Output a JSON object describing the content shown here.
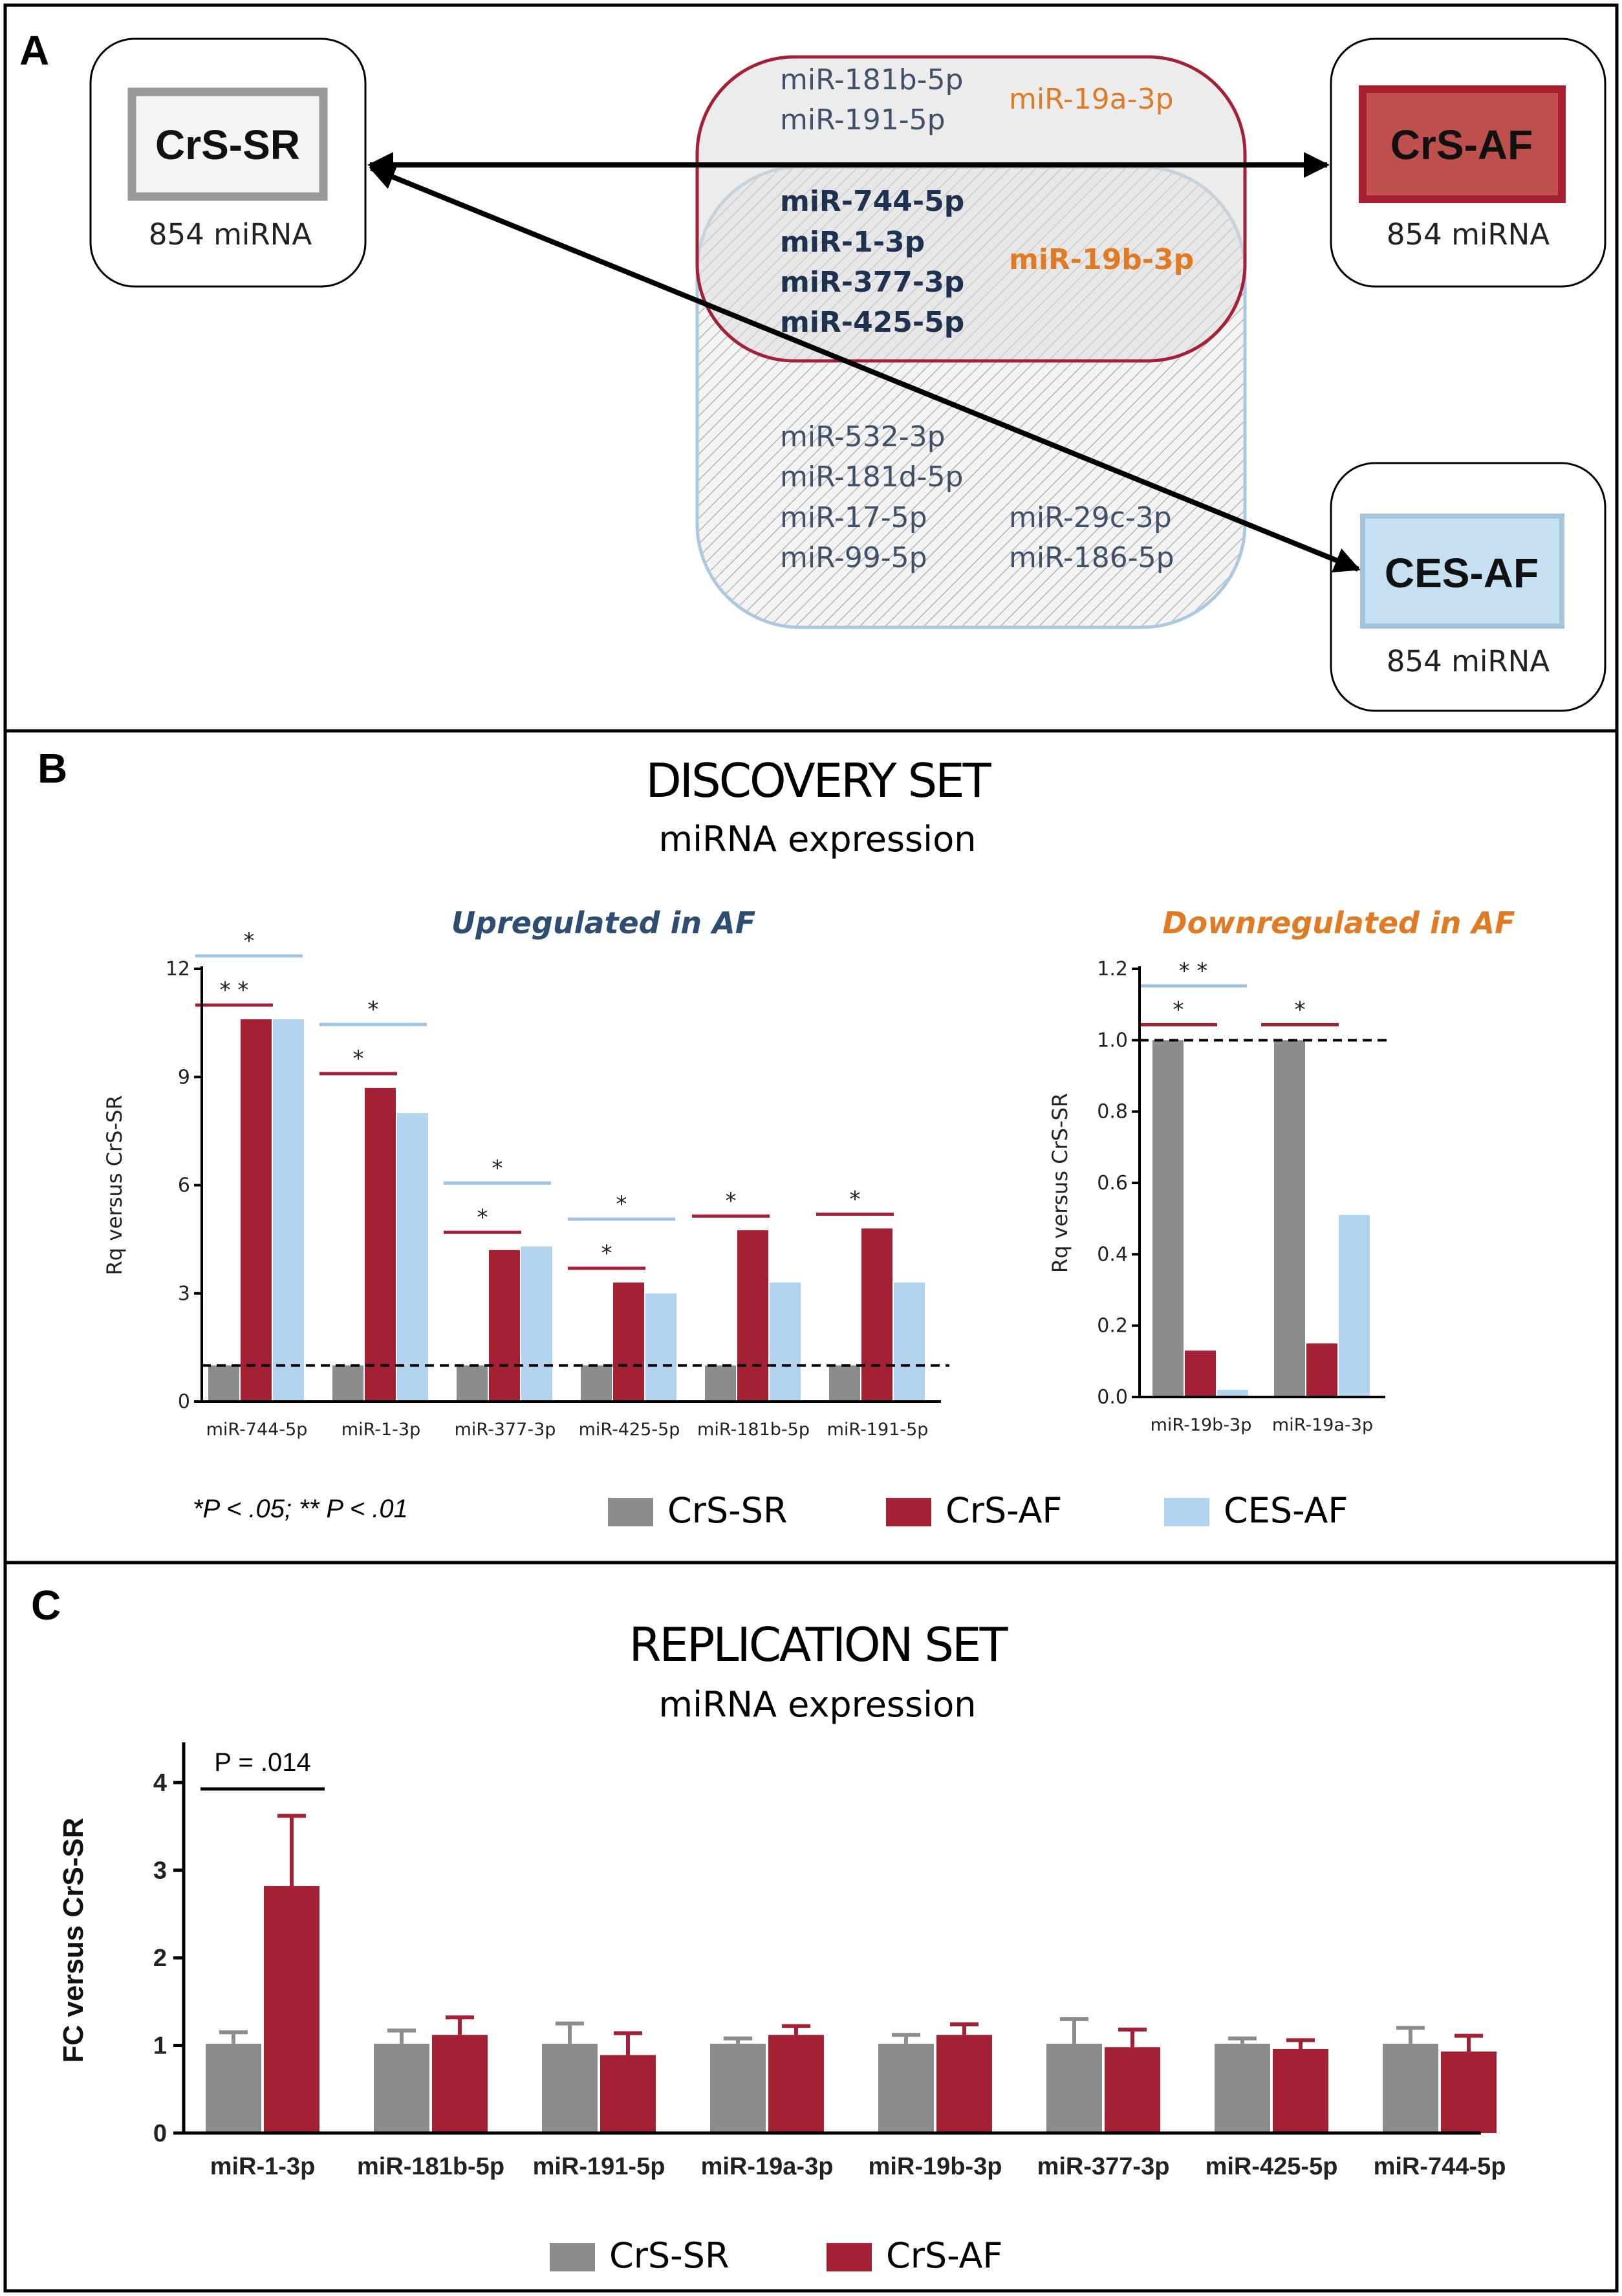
{
  "panel_a": {
    "label": "A",
    "boxes": [
      {
        "name": "CrS-SR",
        "count": "854 miRNA",
        "fill": "#f4f4f4",
        "border": "#999999"
      },
      {
        "name": "CrS-AF",
        "count": "854 miRNA",
        "fill": "#c0504d",
        "border": "#a8202f"
      },
      {
        "name": "CES-AF",
        "count": "854 miRNA",
        "fill": "#c5dff3",
        "border": "#a6c3dc"
      }
    ],
    "red_only_left": [
      "miR-181b-5p",
      "miR-191-5p"
    ],
    "red_only_right": "miR-19a-3p",
    "overlap_left": [
      "miR-744-5p",
      "miR-1-3p",
      "miR-377-3p",
      "miR-425-5p"
    ],
    "overlap_right": "miR-19b-3p",
    "blue_only_left": [
      "miR-532-3p",
      "miR-181d-5p",
      "miR-17-5p",
      "miR-99-5p"
    ],
    "blue_only_right": [
      "miR-29c-3p",
      "miR-186-5p"
    ],
    "colors": {
      "dark_text": "#3f5168",
      "orange": "#e07b24",
      "bold_text": "#1f3150"
    }
  },
  "panel_b": {
    "label": "B",
    "title": "DISCOVERY SET",
    "subtitle": "miRNA expression",
    "significance_note": "*P < .05; ** P < .01"
  },
  "panel_c": {
    "label": "C",
    "title": "REPLICATION SET",
    "subtitle": "miRNA expression",
    "p_label": "P = .014"
  },
  "legend_b": [
    {
      "label": "CrS-SR",
      "color": "#8c8c8c"
    },
    {
      "label": "CrS-AF",
      "color": "#a32035"
    },
    {
      "label": "CES-AF",
      "color": "#b3d4ee"
    }
  ],
  "legend_c": [
    {
      "label": "CrS-SR",
      "color": "#8c8c8c"
    },
    {
      "label": "CrS-AF",
      "color": "#a32035"
    }
  ],
  "chart_data": [
    {
      "id": "up",
      "type": "bar",
      "title": "Upregulated in AF",
      "title_color": "#2e4d72",
      "ylabel": "Rq versus CrS-SR",
      "ylim": [
        0,
        12
      ],
      "yticks": [
        0,
        3,
        6,
        9,
        12
      ],
      "reference_line": 1,
      "categories": [
        "miR-744-5p",
        "miR-1-3p",
        "miR-377-3p",
        "miR-425-5p",
        "miR-181b-5p",
        "miR-191-5p"
      ],
      "series": [
        {
          "name": "CrS-SR",
          "color": "#8c8c8c",
          "values": [
            1,
            1,
            1,
            1,
            1,
            1
          ]
        },
        {
          "name": "CrS-AF",
          "color": "#a32035",
          "values": [
            10.6,
            8.7,
            4.2,
            3.3,
            4.75,
            4.8
          ]
        },
        {
          "name": "CES-AF",
          "color": "#b3d4ee",
          "values": [
            10.6,
            8.0,
            4.3,
            3.0,
            3.3,
            3.3
          ]
        }
      ],
      "significance": [
        {
          "group": 0,
          "compare": "CrS-AF",
          "label": "* *"
        },
        {
          "group": 0,
          "compare": "CES-AF",
          "label": "*"
        },
        {
          "group": 1,
          "compare": "CrS-AF",
          "label": "*"
        },
        {
          "group": 1,
          "compare": "CES-AF",
          "label": "*"
        },
        {
          "group": 2,
          "compare": "CrS-AF",
          "label": "*"
        },
        {
          "group": 2,
          "compare": "CES-AF",
          "label": "*"
        },
        {
          "group": 3,
          "compare": "CrS-AF",
          "label": "*"
        },
        {
          "group": 3,
          "compare": "CES-AF",
          "label": "*"
        },
        {
          "group": 4,
          "compare": "CrS-AF",
          "label": "*"
        },
        {
          "group": 5,
          "compare": "CrS-AF",
          "label": "*"
        }
      ]
    },
    {
      "id": "down",
      "type": "bar",
      "title": "Downregulated in AF",
      "title_color": "#e07b24",
      "ylabel": "Rq versus CrS-SR",
      "ylim": [
        0,
        1.2
      ],
      "yticks": [
        0.0,
        0.2,
        0.4,
        0.6,
        0.8,
        1.0,
        1.2
      ],
      "reference_line": 1.0,
      "categories": [
        "miR-19b-3p",
        "miR-19a-3p"
      ],
      "series": [
        {
          "name": "CrS-SR",
          "color": "#8c8c8c",
          "values": [
            1.0,
            1.0
          ]
        },
        {
          "name": "CrS-AF",
          "color": "#a32035",
          "values": [
            0.13,
            0.15
          ]
        },
        {
          "name": "CES-AF",
          "color": "#b3d4ee",
          "values": [
            0.02,
            0.51
          ]
        }
      ],
      "significance": [
        {
          "group": 0,
          "compare": "CrS-AF",
          "label": "*"
        },
        {
          "group": 0,
          "compare": "CES-AF",
          "label": "* *"
        },
        {
          "group": 1,
          "compare": "CrS-AF",
          "label": "*"
        }
      ]
    },
    {
      "id": "rep",
      "type": "bar",
      "title": "REPLICATION SET",
      "ylabel": "FC versus CrS-SR",
      "ylim": [
        0,
        4.4
      ],
      "yticks": [
        0,
        1,
        2,
        3,
        4
      ],
      "categories": [
        "miR-1-3p",
        "miR-181b-5p",
        "miR-191-5p",
        "miR-19a-3p",
        "miR-19b-3p",
        "miR-377-3p",
        "miR-425-5p",
        "miR-744-5p"
      ],
      "series": [
        {
          "name": "CrS-SR",
          "color": "#8c8c8c",
          "values": [
            1.02,
            1.02,
            1.02,
            1.02,
            1.02,
            1.02,
            1.02,
            1.02
          ],
          "error": [
            0.13,
            0.15,
            0.23,
            0.06,
            0.1,
            0.28,
            0.06,
            0.18
          ]
        },
        {
          "name": "CrS-AF",
          "color": "#a32035",
          "values": [
            2.82,
            1.12,
            0.89,
            1.12,
            1.12,
            0.98,
            0.96,
            0.93
          ],
          "error": [
            0.8,
            0.2,
            0.25,
            0.1,
            0.12,
            0.2,
            0.1,
            0.18
          ]
        }
      ]
    }
  ]
}
